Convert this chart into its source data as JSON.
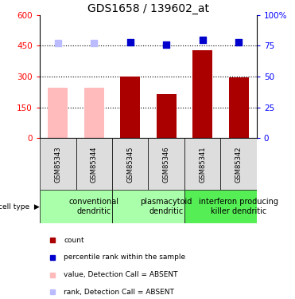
{
  "title": "GDS1658 / 139602_at",
  "samples": [
    "GSM85343",
    "GSM85344",
    "GSM85345",
    "GSM85346",
    "GSM85341",
    "GSM85342"
  ],
  "bar_values": [
    245,
    245,
    300,
    215,
    430,
    295
  ],
  "bar_colors": [
    "#ffbbbb",
    "#ffbbbb",
    "#aa0000",
    "#aa0000",
    "#aa0000",
    "#aa0000"
  ],
  "dot_values": [
    77,
    77,
    78,
    76,
    80,
    78
  ],
  "dot_colors": [
    "#bbbbff",
    "#bbbbff",
    "#0000cc",
    "#0000cc",
    "#0000cc",
    "#0000cc"
  ],
  "ylim_left": [
    0,
    600
  ],
  "ylim_right": [
    0,
    100
  ],
  "yticks_left": [
    0,
    150,
    300,
    450,
    600
  ],
  "ytick_labels_left": [
    "0",
    "150",
    "300",
    "450",
    "600"
  ],
  "ytick_labels_right": [
    "0",
    "25",
    "50",
    "75",
    "100%"
  ],
  "yticks_right": [
    0,
    25,
    50,
    75,
    100
  ],
  "cell_types": [
    {
      "label": "conventional\ndendritic",
      "start": 0,
      "end": 2,
      "color": "#aaffaa"
    },
    {
      "label": "plasmacytoid\ndendritic",
      "start": 2,
      "end": 4,
      "color": "#aaffaa"
    },
    {
      "label": "interferon producing\nkiller dendritic",
      "start": 4,
      "end": 6,
      "color": "#55ee55"
    }
  ],
  "legend_items": [
    {
      "color": "#aa0000",
      "label": "count"
    },
    {
      "color": "#0000cc",
      "label": "percentile rank within the sample"
    },
    {
      "color": "#ffbbbb",
      "label": "value, Detection Call = ABSENT"
    },
    {
      "color": "#bbbbff",
      "label": "rank, Detection Call = ABSENT"
    }
  ],
  "bar_width": 0.55,
  "dot_size": 40,
  "title_fontsize": 10,
  "tick_fontsize": 7.5,
  "sample_fontsize": 6,
  "cell_type_fontsize": 7,
  "legend_fontsize": 6.5,
  "grid_yticks": [
    150,
    300,
    450
  ],
  "bg_color": "#dddddd"
}
